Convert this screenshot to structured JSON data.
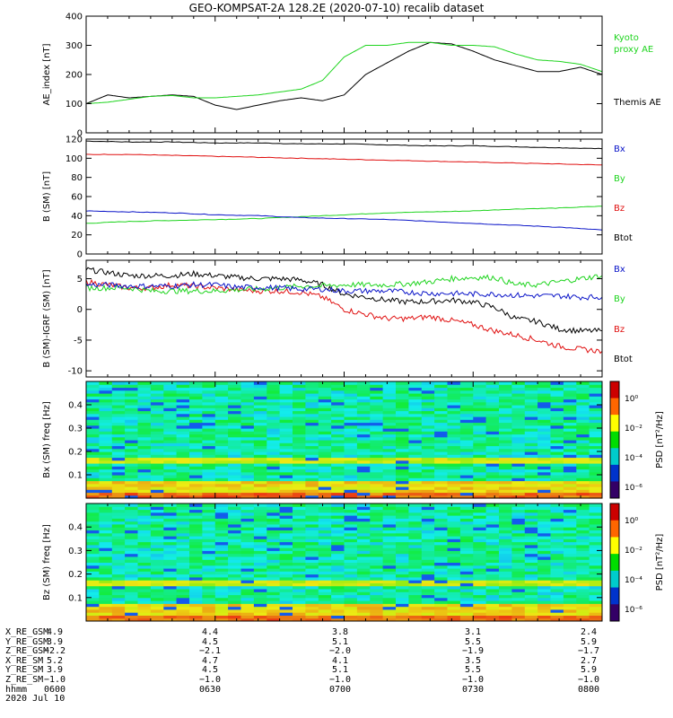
{
  "title": "GEO-KOMPSAT-2A 128.2E (2020-07-10) recalib dataset",
  "colors": {
    "black": "#000000",
    "blue": "#0a14c8",
    "red": "#e01010",
    "green": "#1ed41e"
  },
  "chart_data": [
    {
      "type": "line",
      "panel": "ae",
      "ylabel": "AE_index [nT]",
      "ylim": [
        0,
        400
      ],
      "yticks": [
        "0",
        "100",
        "200",
        "300",
        "400"
      ],
      "x": [
        0,
        5,
        10,
        15,
        20,
        25,
        30,
        35,
        40,
        45,
        50,
        55,
        60,
        65,
        70,
        75,
        80,
        85,
        90,
        95,
        100,
        105,
        110,
        115,
        120
      ],
      "series": [
        {
          "name": "Themis AE",
          "color": "#000000",
          "values": [
            100,
            130,
            120,
            125,
            130,
            125,
            95,
            80,
            95,
            110,
            120,
            110,
            130,
            200,
            240,
            280,
            310,
            305,
            280,
            250,
            230,
            210,
            210,
            225,
            200
          ]
        },
        {
          "name": "Kyoto proxy AE",
          "color": "#1ed41e",
          "values": [
            100,
            105,
            115,
            125,
            128,
            120,
            120,
            125,
            130,
            140,
            150,
            180,
            260,
            300,
            300,
            310,
            310,
            300,
            300,
            295,
            270,
            250,
            245,
            235,
            210
          ]
        }
      ],
      "legend": [
        "Kyoto",
        "proxy AE",
        "Themis AE"
      ]
    },
    {
      "type": "line",
      "panel": "b_sm",
      "ylabel": "B (SM) [nT]",
      "ylim": [
        0,
        120
      ],
      "yticks": [
        "0",
        "20",
        "40",
        "60",
        "80",
        "100",
        "120"
      ],
      "x": [
        0,
        10,
        20,
        30,
        40,
        50,
        60,
        70,
        80,
        90,
        100,
        110,
        120
      ],
      "series": [
        {
          "name": "Btot",
          "color": "#000000",
          "values": [
            118,
            117,
            117,
            116,
            116,
            115,
            115,
            114,
            113,
            113,
            112,
            111,
            110
          ]
        },
        {
          "name": "Bz",
          "color": "#e01010",
          "values": [
            104,
            104,
            103,
            102,
            101,
            100,
            99,
            98,
            97,
            96,
            95,
            94,
            93
          ]
        },
        {
          "name": "By",
          "color": "#1ed41e",
          "values": [
            32,
            34,
            35,
            36,
            37,
            39,
            41,
            43,
            44,
            45,
            47,
            48,
            50
          ]
        },
        {
          "name": "Bx",
          "color": "#0a14c8",
          "values": [
            45,
            44,
            43,
            41,
            40,
            38,
            37,
            36,
            34,
            32,
            30,
            28,
            25
          ]
        }
      ],
      "legend": [
        "Bx",
        "By",
        "Bz",
        "Btot"
      ]
    },
    {
      "type": "line",
      "panel": "b_sm_igrf",
      "ylabel": "B (SM)-IGRF (SM) [nT]",
      "ylim": [
        -11,
        8
      ],
      "yticks": [
        "-10",
        "-5",
        "0",
        "5"
      ],
      "x": [
        0,
        5,
        10,
        15,
        20,
        25,
        30,
        35,
        40,
        45,
        50,
        55,
        60,
        65,
        70,
        75,
        80,
        85,
        90,
        95,
        100,
        105,
        110,
        115,
        120
      ],
      "series": [
        {
          "name": "Btot",
          "color": "#000000",
          "values": [
            6.5,
            6,
            5.5,
            5.5,
            5.5,
            5.8,
            5.5,
            5.2,
            5,
            5,
            4.8,
            4,
            2.5,
            2,
            1.5,
            1.2,
            1.3,
            1.5,
            1.2,
            0.3,
            -1.5,
            -2,
            -3.2,
            -3.5,
            -3.5
          ]
        },
        {
          "name": "Bz",
          "color": "#e01010",
          "values": [
            4.5,
            4,
            3.5,
            3.5,
            4,
            3.8,
            3.5,
            3.2,
            3,
            3,
            2.8,
            2,
            0,
            -0.8,
            -1.5,
            -1.5,
            -1.2,
            -1.8,
            -2.5,
            -3.5,
            -4.2,
            -5,
            -6,
            -6.5,
            -6.8
          ]
        },
        {
          "name": "By",
          "color": "#1ed41e",
          "values": [
            3.5,
            3.5,
            3.5,
            3,
            3,
            3,
            3,
            3.2,
            3.3,
            3.5,
            3.8,
            3.8,
            4,
            4,
            4,
            4.2,
            4.5,
            5,
            5.2,
            5.2,
            4,
            4,
            4.5,
            5,
            5.5
          ]
        },
        {
          "name": "Bx",
          "color": "#0a14c8",
          "values": [
            4,
            4,
            3.8,
            3.8,
            3.8,
            4,
            4,
            3.6,
            3.6,
            3.5,
            3.3,
            3.3,
            3,
            3,
            3,
            2.8,
            2.6,
            2.6,
            2.5,
            2.5,
            2.3,
            2.2,
            2.2,
            2,
            2
          ]
        }
      ],
      "legend": [
        "Bx",
        "By",
        "Bz",
        "Btot"
      ]
    },
    {
      "type": "heatmap",
      "panel": "bx_spec",
      "ylabel": "Bx (SM) freq [Hz]",
      "ylim": [
        0,
        0.5
      ],
      "yticks": [
        "0.1",
        "0.2",
        "0.3",
        "0.4"
      ],
      "colorbar_label": "PSD [nT²/Hz]",
      "colorbar_ticks": [
        "10⁰",
        "10⁻²",
        "10⁻⁴",
        "10⁻⁶"
      ]
    },
    {
      "type": "heatmap",
      "panel": "bz_spec",
      "ylabel": "Bz (SM) freq [Hz]",
      "ylim": [
        0,
        0.5
      ],
      "yticks": [
        "0.1",
        "0.2",
        "0.3",
        "0.4"
      ],
      "colorbar_label": "PSD [nT²/Hz]",
      "colorbar_ticks": [
        "10⁰",
        "10⁻²",
        "10⁻⁴",
        "10⁻⁶"
      ]
    }
  ],
  "ephemeris": {
    "rows": [
      {
        "label": "X_RE_GSM",
        "values": [
          "4.9",
          "4.4",
          "3.8",
          "3.1",
          "2.4"
        ]
      },
      {
        "label": "Y_RE_GSM",
        "values": [
          "3.9",
          "4.5",
          "5.1",
          "5.5",
          "5.9"
        ]
      },
      {
        "label": "Z_RE_GSM",
        "values": [
          "−2.2",
          "−2.1",
          "−2.0",
          "−1.9",
          "−1.7"
        ]
      },
      {
        "label": "X_RE_SM",
        "values": [
          "5.2",
          "4.7",
          "4.1",
          "3.5",
          "2.7"
        ]
      },
      {
        "label": "Y_RE_SM",
        "values": [
          "3.9",
          "4.5",
          "5.1",
          "5.5",
          "5.9"
        ]
      },
      {
        "label": "Z_RE_SM",
        "values": [
          "−1.0",
          "−1.0",
          "−1.0",
          "−1.0",
          "−1.0"
        ]
      },
      {
        "label": "hhmm",
        "values": [
          "0600",
          "0630",
          "0700",
          "0730",
          "0800"
        ]
      }
    ],
    "date": "2020 Jul 10"
  }
}
